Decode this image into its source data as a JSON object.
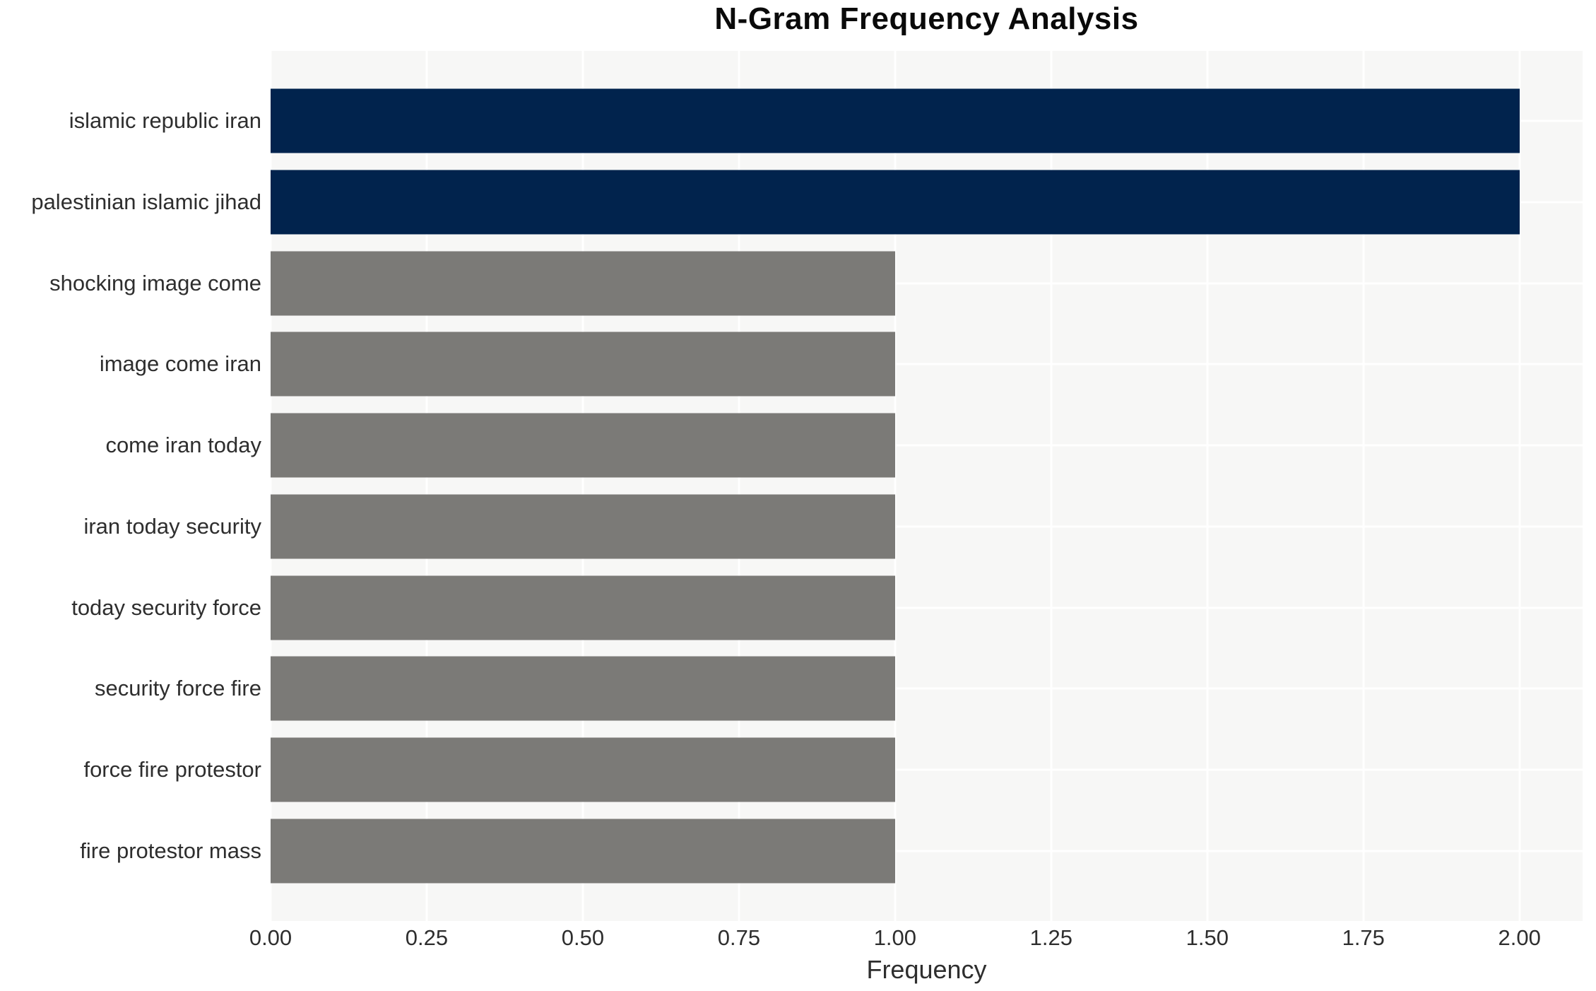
{
  "chart_data": {
    "type": "bar",
    "orientation": "horizontal",
    "title": "N-Gram Frequency Analysis",
    "xlabel": "Frequency",
    "ylabel": "",
    "categories": [
      "islamic republic iran",
      "palestinian islamic jihad",
      "shocking image come",
      "image come iran",
      "come iran today",
      "iran today security",
      "today security force",
      "security force fire",
      "force fire protestor",
      "fire protestor mass"
    ],
    "values": [
      2,
      2,
      1,
      1,
      1,
      1,
      1,
      1,
      1,
      1
    ],
    "bar_colors": [
      "#01234d",
      "#01234d",
      "#7b7a77",
      "#7b7a77",
      "#7b7a77",
      "#7b7a77",
      "#7b7a77",
      "#7b7a77",
      "#7b7a77",
      "#7b7a77"
    ],
    "xlim": [
      0,
      2.101
    ],
    "xticks": [
      "0.00",
      "0.25",
      "0.50",
      "0.75",
      "1.00",
      "1.25",
      "1.50",
      "1.75",
      "2.00"
    ],
    "xtick_values": [
      0,
      0.25,
      0.5,
      0.75,
      1.0,
      1.25,
      1.5,
      1.75,
      2.0
    ],
    "grid": true,
    "legend": "none",
    "plot_bg_color": "#f7f7f6",
    "gridline_color": "#ffffff",
    "highlight_color": "#01234d",
    "default_color": "#7b7a77",
    "title_color": "#0a0a0a",
    "text_color": "#2e2e2e"
  }
}
